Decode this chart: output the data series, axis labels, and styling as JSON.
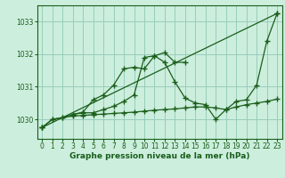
{
  "xlabel": "Graphe pression niveau de la mer (hPa)",
  "bg_color": "#cceedd",
  "grid_color": "#99ccbb",
  "line_color": "#1a5e1a",
  "ylim": [
    1029.4,
    1033.5
  ],
  "xlim": [
    -0.5,
    23.5
  ],
  "yticks": [
    1030,
    1031,
    1032,
    1033
  ],
  "xticks": [
    0,
    1,
    2,
    3,
    4,
    5,
    6,
    7,
    8,
    9,
    10,
    11,
    12,
    13,
    14,
    15,
    16,
    17,
    18,
    19,
    20,
    21,
    22,
    23
  ],
  "series": [
    {
      "x": [
        0,
        1,
        2,
        3,
        4,
        5,
        6,
        7,
        8,
        9,
        10,
        11,
        12,
        13,
        14,
        15,
        16,
        17,
        18,
        19,
        20,
        21,
        22,
        23
      ],
      "y": [
        1029.75,
        1030.0,
        1030.05,
        1030.1,
        1030.12,
        1030.14,
        1030.16,
        1030.18,
        1030.2,
        1030.22,
        1030.25,
        1030.28,
        1030.3,
        1030.32,
        1030.35,
        1030.38,
        1030.38,
        1030.35,
        1030.3,
        1030.38,
        1030.45,
        1030.5,
        1030.55,
        1030.62
      ]
    },
    {
      "x": [
        0,
        23
      ],
      "y": [
        1029.75,
        1033.25
      ]
    },
    {
      "x": [
        0,
        1,
        2,
        3,
        4,
        5,
        6,
        7,
        8,
        9,
        10,
        11,
        12,
        13,
        14,
        15,
        16,
        17,
        18,
        19,
        20,
        21,
        22,
        23
      ],
      "y": [
        1029.75,
        1030.0,
        1030.05,
        1030.15,
        1030.2,
        1030.2,
        1030.3,
        1030.4,
        1030.55,
        1030.75,
        1031.9,
        1031.95,
        1031.75,
        1031.15,
        1030.65,
        1030.5,
        1030.45,
        1030.0,
        1030.3,
        1030.55,
        1030.6,
        1031.05,
        1032.4,
        1033.25
      ]
    },
    {
      "x": [
        3,
        4,
        5,
        6,
        7,
        8,
        9,
        10,
        11,
        12,
        13,
        14
      ],
      "y": [
        1030.15,
        1030.22,
        1030.6,
        1030.75,
        1031.05,
        1031.55,
        1031.6,
        1031.55,
        1031.95,
        1032.05,
        1031.75,
        1031.75
      ]
    }
  ],
  "marker": "+",
  "markersize": 4,
  "markeredgewidth": 1.0,
  "linewidth": 0.9,
  "tick_fontsize": 5.5,
  "xlabel_fontsize": 6.5,
  "spine_color": "#1a5e1a"
}
